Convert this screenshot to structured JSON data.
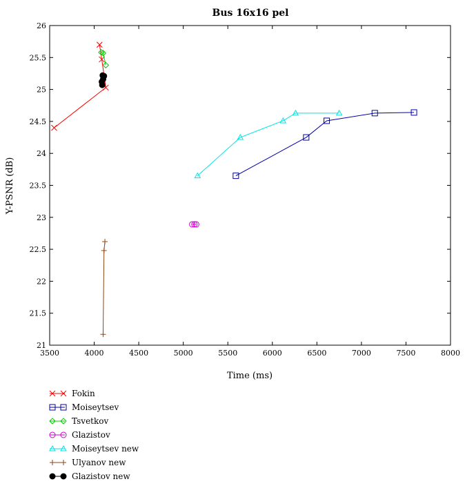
{
  "chart_data": {
    "type": "line",
    "title": "Bus 16x16 pel",
    "xlabel": "Time (ms)",
    "ylabel": "Y-PSNR (dB)",
    "xlim": [
      3500,
      8000
    ],
    "ylim": [
      21,
      26
    ],
    "xticks": [
      3500,
      4000,
      4500,
      5000,
      5500,
      6000,
      6500,
      7000,
      7500,
      8000
    ],
    "yticks": [
      21,
      21.5,
      22,
      22.5,
      23,
      23.5,
      24,
      24.5,
      25,
      25.5,
      26
    ],
    "grid": false,
    "legend_position": "bottom-left outside",
    "series": [
      {
        "name": "Fokin",
        "color": "#ff0000",
        "marker": "x",
        "x": [
          3550,
          4130,
          4085,
          4060
        ],
        "y": [
          24.4,
          25.03,
          25.47,
          25.7
        ]
      },
      {
        "name": "Moiseytsev",
        "color": "#0000aa",
        "marker": "square",
        "x": [
          5590,
          6380,
          6610,
          7150,
          7590
        ],
        "y": [
          23.65,
          24.25,
          24.51,
          24.63,
          24.64
        ]
      },
      {
        "name": "Tsvetkov",
        "color": "#00cc00",
        "marker": "diamond",
        "x": [
          4130,
          4100,
          4080
        ],
        "y": [
          25.38,
          25.57,
          25.58
        ]
      },
      {
        "name": "Glazistov",
        "color": "#cc00cc",
        "marker": "circle",
        "x": [
          5100,
          5125,
          5145
        ],
        "y": [
          22.89,
          22.89,
          22.89
        ]
      },
      {
        "name": "Moiseytsev new",
        "color": "#00e5e5",
        "marker": "triangle",
        "x": [
          5160,
          5640,
          6120,
          6260,
          6750
        ],
        "y": [
          23.65,
          24.25,
          24.51,
          24.63,
          24.63
        ]
      },
      {
        "name": "Ulyanov new",
        "color": "#8b4513",
        "marker": "plus",
        "x": [
          4100,
          4110,
          4120
        ],
        "y": [
          21.17,
          22.48,
          22.62
        ]
      },
      {
        "name": "Glazistov new",
        "color": "#000000",
        "marker": "filled-circle",
        "x": [
          4090,
          4085,
          4100,
          4110,
          4095
        ],
        "y": [
          25.07,
          25.12,
          25.16,
          25.21,
          25.22
        ]
      }
    ]
  }
}
